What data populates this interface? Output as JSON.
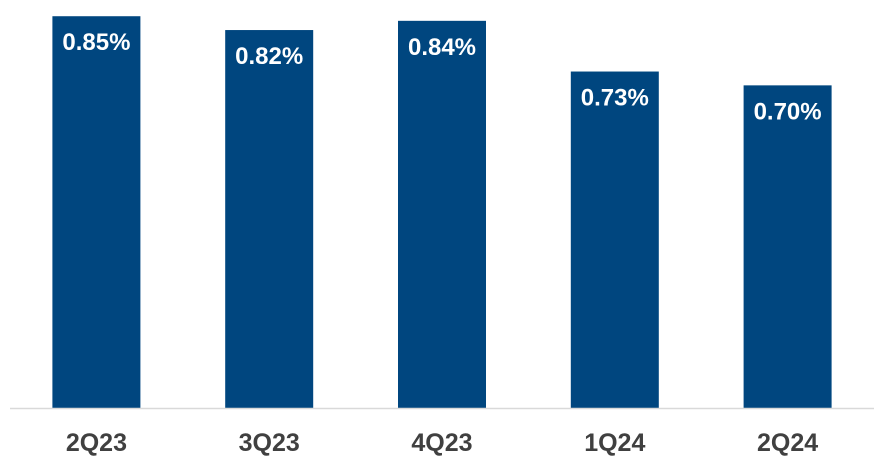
{
  "chart_data": {
    "type": "bar",
    "categories": [
      "2Q23",
      "3Q23",
      "4Q23",
      "1Q24",
      "2Q24"
    ],
    "values": [
      0.85,
      0.82,
      0.84,
      0.73,
      0.7
    ],
    "data_labels": [
      "0.85%",
      "0.82%",
      "0.84%",
      "0.73%",
      "0.70%"
    ],
    "title": "",
    "xlabel": "",
    "ylabel": "",
    "ylim": [
      0,
      0.87
    ],
    "grid": false,
    "legend": "none",
    "colors": {
      "bar": "#00467f",
      "bar_label": "#ffffff",
      "category_label": "#404040",
      "axis_line": "#d9d9d9"
    }
  }
}
